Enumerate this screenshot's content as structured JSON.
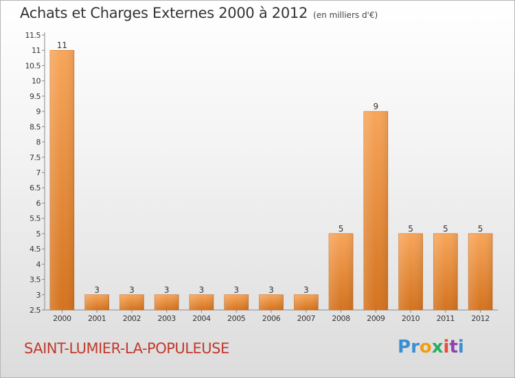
{
  "chart_data": {
    "type": "bar",
    "title": "Achats et Charges Externes 2000 à 2012",
    "subtitle": "(en milliers d'€)",
    "categories": [
      "2000",
      "2001",
      "2002",
      "2003",
      "2004",
      "2005",
      "2006",
      "2007",
      "2008",
      "2009",
      "2010",
      "2011",
      "2012"
    ],
    "values": [
      11,
      3,
      3,
      3,
      3,
      3,
      3,
      3,
      5,
      9,
      5,
      5,
      5
    ],
    "ylim": [
      2.5,
      11.5
    ],
    "yticks": [
      "2.5",
      "3",
      "3.5",
      "4",
      "4.5",
      "5",
      "5.5",
      "6",
      "6.5",
      "7",
      "7.5",
      "8",
      "8.5",
      "9",
      "9.5",
      "10",
      "10.5",
      "11",
      "11.5"
    ],
    "grid": false,
    "bar_color_top": "#f7a55a",
    "bar_color_bottom": "#d4731e"
  },
  "footer": {
    "place": "SAINT-LUMIER-LA-POPULEUSE",
    "place_color": "#c0392b",
    "logo_letters": [
      {
        "ch": "P",
        "color": "#3a8fd4"
      },
      {
        "ch": "r",
        "color": "#3a8fd4"
      },
      {
        "ch": "o",
        "color": "#f39c12"
      },
      {
        "ch": "x",
        "color": "#27ae60"
      },
      {
        "ch": "i",
        "color": "#e74c3c"
      },
      {
        "ch": "t",
        "color": "#8e44ad"
      },
      {
        "ch": "i",
        "color": "#3a8fd4"
      }
    ]
  }
}
